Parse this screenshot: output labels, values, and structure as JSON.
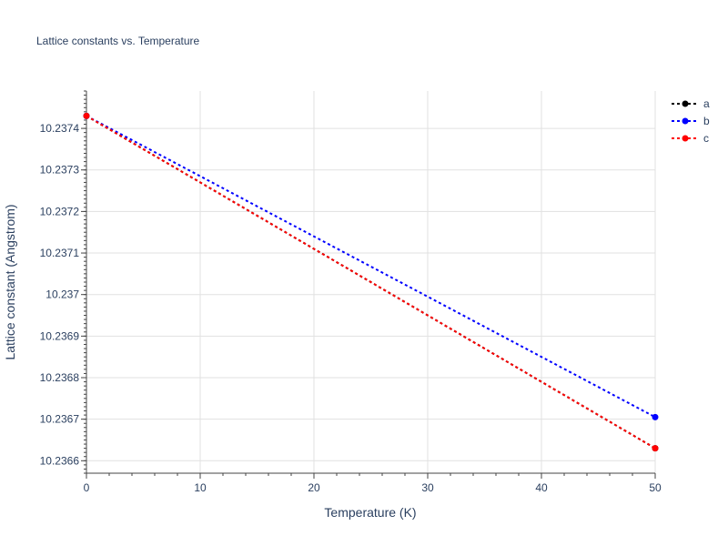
{
  "chart_data": {
    "type": "line",
    "title": "Lattice constants vs. Temperature",
    "xlabel": "Temperature (K)",
    "ylabel": "Lattice constant (Angstrom)",
    "xlim": [
      0,
      50
    ],
    "ylim": [
      10.23657,
      10.23749
    ],
    "x_ticks": [
      0,
      10,
      20,
      30,
      40,
      50
    ],
    "y_ticks": [
      10.2366,
      10.2367,
      10.2368,
      10.2369,
      10.237,
      10.2371,
      10.2372,
      10.2373,
      10.2374
    ],
    "y_tick_labels": [
      "10.2366",
      "10.2367",
      "10.2368",
      "10.2369",
      "10.237",
      "10.2371",
      "10.2372",
      "10.2373",
      "10.2374"
    ],
    "grid": true,
    "legend_position": "top-right",
    "series": [
      {
        "name": "a",
        "color": "#000000",
        "x": [
          0,
          50
        ],
        "y": [
          10.23743,
          10.23663
        ]
      },
      {
        "name": "b",
        "color": "#0000ff",
        "x": [
          0,
          50
        ],
        "y": [
          10.23743,
          10.236705
        ]
      },
      {
        "name": "c",
        "color": "#ff0000",
        "x": [
          0,
          50
        ],
        "y": [
          10.23743,
          10.23663
        ]
      }
    ]
  }
}
